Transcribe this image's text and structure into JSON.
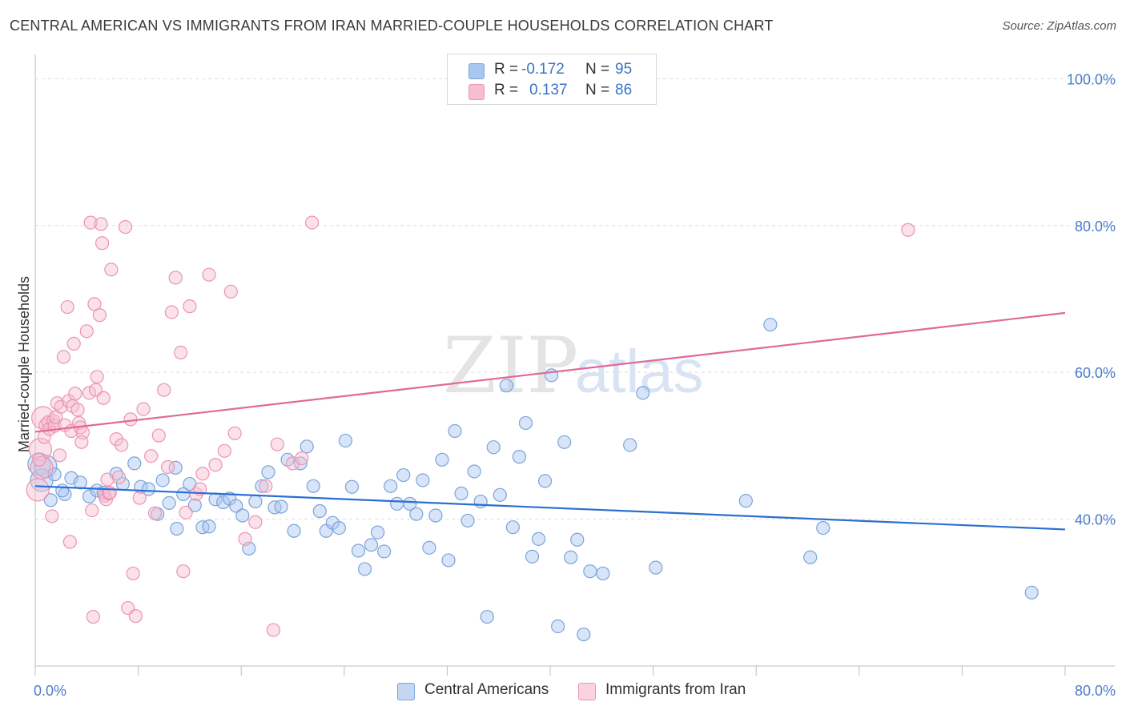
{
  "header": {
    "title": "CENTRAL AMERICAN VS IMMIGRANTS FROM IRAN MARRIED-COUPLE HOUSEHOLDS CORRELATION CHART",
    "source": "Source: ZipAtlas.com"
  },
  "watermark": {
    "zip": "ZIP",
    "atlas": "atlas"
  },
  "legend": {
    "rows": [
      {
        "r_label": "R =",
        "r_value": "-0.172",
        "n_label": "N =",
        "n_value": "95",
        "color": "#a9c6ef",
        "border": "#7ba3db"
      },
      {
        "r_label": "R =",
        "r_value": "0.137",
        "n_label": "N =",
        "n_value": "86",
        "color": "#f6bfd0",
        "border": "#ec93b1"
      }
    ]
  },
  "bottom_legend": {
    "items": [
      {
        "label": "Central Americans",
        "color": "#c3d7f3",
        "border": "#7ba3db"
      },
      {
        "label": "Immigrants from Iran",
        "color": "#fad3df",
        "border": "#ec93b1"
      }
    ]
  },
  "chart_data": {
    "type": "scatter",
    "title": "CENTRAL AMERICAN VS IMMIGRANTS FROM IRAN MARRIED-COUPLE HOUSEHOLDS CORRELATION CHART",
    "xlabel": "",
    "ylabel": "Married-couple Households",
    "xlim": [
      0,
      80
    ],
    "ylim": [
      20,
      102
    ],
    "x_tick_labels": [
      "0.0%",
      "80.0%"
    ],
    "y_ticks": [
      40,
      60,
      80,
      100
    ],
    "y_tick_labels": [
      "40.0%",
      "60.0%",
      "80.0%",
      "100.0%"
    ],
    "grid": true,
    "legend_position": "top-center",
    "series": [
      {
        "name": "Central Americans",
        "color": "#7ba3db",
        "fill": "rgba(169,198,239,0.45)",
        "trend": {
          "x": [
            0,
            80
          ],
          "y": [
            44.5,
            38.6
          ]
        },
        "points": [
          [
            0.3,
            47.5
          ],
          [
            0.5,
            45.3
          ],
          [
            0.8,
            47.2
          ],
          [
            1.5,
            46.1
          ],
          [
            2.3,
            43.4
          ],
          [
            2.8,
            45.6
          ],
          [
            3.5,
            45.0
          ],
          [
            4.2,
            43.1
          ],
          [
            4.8,
            43.9
          ],
          [
            5.3,
            43.6
          ],
          [
            6.3,
            46.2
          ],
          [
            6.8,
            44.8
          ],
          [
            7.7,
            47.6
          ],
          [
            8.2,
            44.4
          ],
          [
            8.8,
            44.1
          ],
          [
            9.5,
            40.7
          ],
          [
            9.9,
            45.3
          ],
          [
            10.4,
            42.2
          ],
          [
            10.9,
            47.0
          ],
          [
            11.5,
            43.4
          ],
          [
            12.0,
            44.8
          ],
          [
            12.4,
            41.9
          ],
          [
            13.0,
            38.9
          ],
          [
            13.5,
            39.0
          ],
          [
            14.0,
            42.7
          ],
          [
            14.6,
            42.3
          ],
          [
            15.1,
            42.8
          ],
          [
            15.6,
            41.8
          ],
          [
            16.1,
            40.5
          ],
          [
            16.6,
            36.0
          ],
          [
            17.1,
            42.4
          ],
          [
            17.6,
            44.5
          ],
          [
            18.1,
            46.4
          ],
          [
            18.6,
            41.6
          ],
          [
            19.1,
            41.7
          ],
          [
            19.6,
            48.1
          ],
          [
            20.1,
            38.4
          ],
          [
            20.6,
            47.6
          ],
          [
            21.1,
            49.9
          ],
          [
            21.6,
            44.5
          ],
          [
            22.1,
            41.1
          ],
          [
            22.6,
            38.4
          ],
          [
            23.1,
            39.5
          ],
          [
            23.6,
            38.8
          ],
          [
            24.1,
            50.7
          ],
          [
            24.6,
            44.4
          ],
          [
            25.1,
            35.7
          ],
          [
            25.6,
            33.2
          ],
          [
            26.1,
            36.5
          ],
          [
            26.6,
            38.2
          ],
          [
            27.1,
            35.6
          ],
          [
            27.6,
            44.5
          ],
          [
            28.1,
            42.1
          ],
          [
            28.6,
            46.0
          ],
          [
            29.1,
            42.1
          ],
          [
            29.6,
            40.7
          ],
          [
            30.1,
            45.3
          ],
          [
            30.6,
            36.1
          ],
          [
            31.1,
            40.5
          ],
          [
            31.6,
            48.1
          ],
          [
            32.1,
            34.4
          ],
          [
            32.6,
            52.0
          ],
          [
            33.1,
            43.5
          ],
          [
            33.6,
            39.8
          ],
          [
            34.1,
            46.5
          ],
          [
            34.6,
            42.4
          ],
          [
            35.1,
            26.7
          ],
          [
            35.6,
            49.8
          ],
          [
            36.1,
            43.3
          ],
          [
            36.6,
            58.2
          ],
          [
            37.1,
            38.9
          ],
          [
            37.6,
            48.5
          ],
          [
            38.1,
            53.1
          ],
          [
            38.6,
            34.9
          ],
          [
            39.1,
            37.3
          ],
          [
            39.6,
            45.2
          ],
          [
            40.1,
            59.6
          ],
          [
            40.6,
            25.4
          ],
          [
            41.1,
            50.5
          ],
          [
            41.6,
            34.8
          ],
          [
            42.1,
            37.2
          ],
          [
            42.6,
            24.3
          ],
          [
            43.1,
            32.9
          ],
          [
            44.1,
            32.6
          ],
          [
            46.2,
            50.1
          ],
          [
            47.2,
            57.2
          ],
          [
            48.2,
            33.4
          ],
          [
            55.2,
            42.5
          ],
          [
            57.1,
            66.5
          ],
          [
            60.2,
            34.8
          ],
          [
            61.2,
            38.8
          ],
          [
            77.4,
            30.0
          ],
          [
            1.2,
            42.6
          ],
          [
            2.1,
            43.9
          ],
          [
            11.0,
            38.7
          ]
        ]
      },
      {
        "name": "Immigrants from Iran",
        "color": "#ec93b1",
        "fill": "rgba(246,191,208,0.45)",
        "trend": {
          "x": [
            0,
            80
          ],
          "y": [
            51.9,
            68.1
          ]
        },
        "points": [
          [
            0.2,
            44.0
          ],
          [
            0.4,
            49.5
          ],
          [
            0.5,
            47.0
          ],
          [
            0.6,
            53.8
          ],
          [
            0.7,
            51.2
          ],
          [
            0.8,
            52.8
          ],
          [
            1.0,
            53.2
          ],
          [
            1.1,
            52.3
          ],
          [
            1.3,
            40.4
          ],
          [
            1.4,
            53.4
          ],
          [
            1.5,
            52.7
          ],
          [
            1.7,
            55.8
          ],
          [
            1.9,
            48.7
          ],
          [
            2.0,
            55.3
          ],
          [
            2.2,
            62.1
          ],
          [
            2.3,
            52.8
          ],
          [
            2.5,
            68.9
          ],
          [
            2.6,
            56.1
          ],
          [
            2.7,
            36.9
          ],
          [
            2.8,
            52.0
          ],
          [
            2.9,
            55.4
          ],
          [
            3.0,
            63.9
          ],
          [
            3.1,
            57.1
          ],
          [
            3.3,
            54.9
          ],
          [
            3.4,
            53.1
          ],
          [
            3.5,
            52.5
          ],
          [
            3.7,
            51.8
          ],
          [
            4.0,
            65.6
          ],
          [
            4.2,
            57.2
          ],
          [
            4.3,
            80.4
          ],
          [
            4.4,
            41.2
          ],
          [
            4.5,
            26.7
          ],
          [
            4.6,
            69.3
          ],
          [
            4.7,
            57.6
          ],
          [
            4.8,
            59.4
          ],
          [
            5.0,
            67.8
          ],
          [
            5.1,
            80.2
          ],
          [
            5.2,
            77.6
          ],
          [
            5.3,
            56.5
          ],
          [
            5.4,
            43.2
          ],
          [
            5.5,
            42.7
          ],
          [
            5.6,
            45.4
          ],
          [
            5.7,
            43.5
          ],
          [
            5.8,
            43.6
          ],
          [
            5.9,
            74.0
          ],
          [
            6.3,
            50.9
          ],
          [
            6.7,
            50.1
          ],
          [
            7.0,
            79.8
          ],
          [
            7.2,
            27.9
          ],
          [
            7.4,
            53.6
          ],
          [
            7.6,
            32.6
          ],
          [
            7.8,
            26.8
          ],
          [
            8.1,
            42.9
          ],
          [
            8.4,
            55.0
          ],
          [
            9.3,
            40.8
          ],
          [
            9.6,
            51.4
          ],
          [
            10.0,
            57.6
          ],
          [
            10.3,
            47.1
          ],
          [
            10.6,
            68.2
          ],
          [
            10.9,
            72.9
          ],
          [
            11.3,
            62.7
          ],
          [
            11.5,
            32.9
          ],
          [
            11.7,
            40.9
          ],
          [
            12.0,
            69.0
          ],
          [
            12.5,
            43.4
          ],
          [
            13.0,
            46.2
          ],
          [
            13.5,
            73.3
          ],
          [
            14.0,
            47.4
          ],
          [
            14.7,
            49.3
          ],
          [
            15.2,
            71.0
          ],
          [
            15.5,
            51.7
          ],
          [
            16.3,
            37.3
          ],
          [
            17.1,
            39.6
          ],
          [
            18.5,
            24.9
          ],
          [
            18.8,
            50.2
          ],
          [
            20.0,
            47.6
          ],
          [
            20.7,
            48.3
          ],
          [
            21.5,
            80.4
          ],
          [
            67.8,
            79.4
          ],
          [
            0.3,
            48.1
          ],
          [
            1.6,
            53.9
          ],
          [
            3.6,
            50.5
          ],
          [
            6.5,
            45.7
          ],
          [
            9.0,
            48.6
          ],
          [
            12.8,
            44.1
          ],
          [
            17.9,
            44.5
          ]
        ]
      }
    ]
  }
}
